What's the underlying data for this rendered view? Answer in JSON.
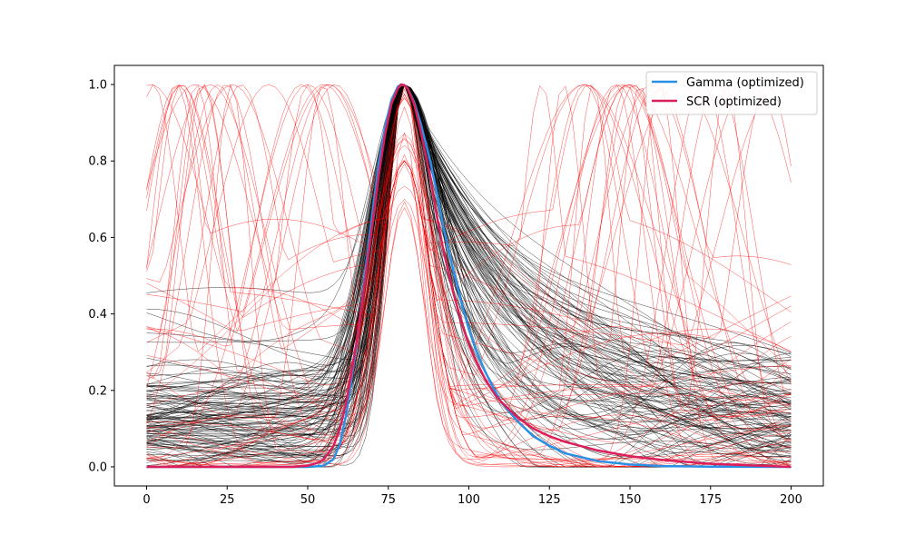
{
  "chart_data": {
    "type": "line",
    "title": "",
    "xlabel": "",
    "ylabel": "",
    "xlim": [
      -10,
      210
    ],
    "ylim": [
      -0.05,
      1.05
    ],
    "x_ticks": [
      0,
      25,
      50,
      75,
      100,
      125,
      150,
      175,
      200
    ],
    "y_ticks": [
      0.0,
      0.2,
      0.4,
      0.6,
      0.8,
      1.0
    ],
    "grid": false,
    "legend_position": "top-right",
    "series": [
      {
        "name": "Gamma (optimized)",
        "color": "#2b8fe6",
        "x": [
          0,
          50,
          55,
          58,
          60,
          62,
          65,
          68,
          70,
          72,
          74,
          76,
          78,
          79,
          80,
          81,
          83,
          85,
          88,
          90,
          92,
          95,
          98,
          100,
          102,
          105,
          108,
          110,
          115,
          120,
          125,
          130,
          140,
          150,
          160,
          175,
          200
        ],
        "values": [
          0,
          0,
          0.003,
          0.02,
          0.06,
          0.14,
          0.31,
          0.52,
          0.66,
          0.79,
          0.89,
          0.96,
          0.995,
          1.0,
          0.998,
          0.99,
          0.955,
          0.9,
          0.8,
          0.72,
          0.63,
          0.52,
          0.42,
          0.36,
          0.31,
          0.25,
          0.2,
          0.17,
          0.12,
          0.08,
          0.055,
          0.035,
          0.015,
          0.006,
          0.002,
          0.0005,
          0
        ]
      },
      {
        "name": "SCR (optimized)",
        "color": "#dc1e5a",
        "x": [
          0,
          45,
          50,
          53,
          55,
          58,
          60,
          62,
          65,
          68,
          70,
          72,
          74,
          76,
          78,
          79,
          80,
          81,
          83,
          85,
          88,
          90,
          92,
          95,
          98,
          100,
          102,
          105,
          108,
          110,
          115,
          120,
          125,
          130,
          140,
          150,
          160,
          175,
          200
        ],
        "values": [
          0,
          0,
          0.003,
          0.01,
          0.02,
          0.055,
          0.1,
          0.17,
          0.32,
          0.5,
          0.63,
          0.76,
          0.87,
          0.95,
          0.99,
          1.0,
          0.998,
          0.99,
          0.95,
          0.88,
          0.76,
          0.66,
          0.57,
          0.46,
          0.37,
          0.32,
          0.28,
          0.23,
          0.19,
          0.17,
          0.13,
          0.1,
          0.08,
          0.065,
          0.043,
          0.028,
          0.018,
          0.008,
          0
        ]
      }
    ],
    "background_traces": {
      "note_colors": {
        "black": "#000000",
        "red": "#ff0000"
      },
      "black_count": 110,
      "red_count": 45,
      "peak_x": 80,
      "peak_value": 1.0
    }
  }
}
